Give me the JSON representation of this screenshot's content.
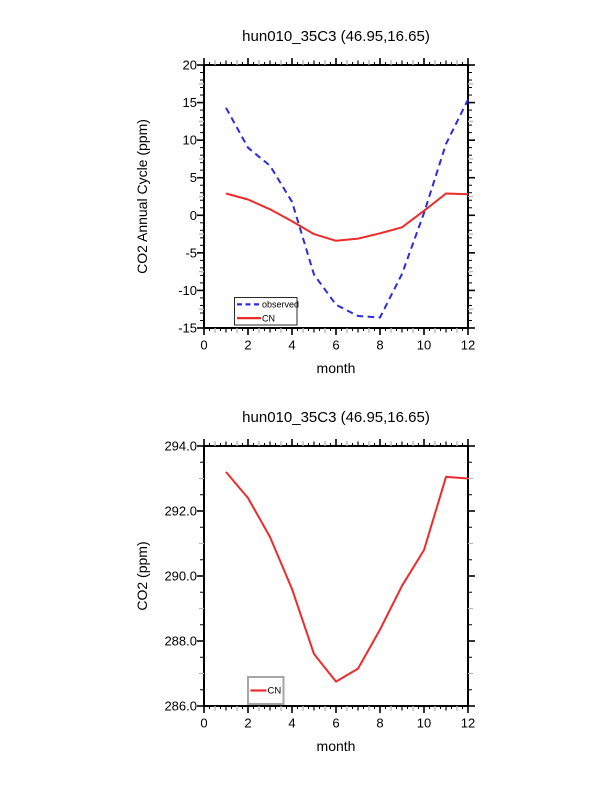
{
  "figure": {
    "background": "#ffffff",
    "frame_color": "#000000",
    "gray_tick_color": "#b4b4b4"
  },
  "chart_data": [
    {
      "type": "line",
      "title": "hun010_35C3 (46.95,16.65)",
      "xlabel": "month",
      "ylabel": "CO2 Annual Cycle (ppm)",
      "xlim": [
        0,
        12
      ],
      "ylim": [
        -15,
        20
      ],
      "xticks": [
        0,
        2,
        4,
        6,
        8,
        10,
        12
      ],
      "xticklabels": [
        "0",
        "2",
        "4",
        "6",
        "8",
        "10",
        "12"
      ],
      "yticks": [
        -15,
        -10,
        -5,
        0,
        5,
        10,
        15,
        20
      ],
      "yticklabels": [
        "-15",
        "-10",
        "-5",
        "0",
        "5",
        "10",
        "15",
        "20"
      ],
      "grid": false,
      "x": [
        1,
        2,
        3,
        4,
        5,
        6,
        7,
        8,
        9,
        10,
        11,
        12
      ],
      "series": [
        {
          "name": "observed",
          "color": "#2b2bdf",
          "dashed": true,
          "values": [
            14.3,
            9.0,
            6.6,
            1.8,
            -7.9,
            -11.9,
            -13.4,
            -13.6,
            -7.8,
            0.3,
            9.5,
            15.4
          ]
        },
        {
          "name": "CN",
          "color": "#ee2b2b",
          "dashed": false,
          "values": [
            2.9,
            2.1,
            0.8,
            -0.8,
            -2.5,
            -3.4,
            -3.1,
            -2.4,
            -1.6,
            0.6,
            2.9,
            2.8
          ]
        }
      ],
      "legend": {
        "entries": [
          "observed",
          "CN"
        ],
        "position": "lower-left",
        "border_color": "#2b2b2b"
      }
    },
    {
      "type": "line",
      "title": "hun010_35C3 (46.95,16.65)",
      "xlabel": "month",
      "ylabel": "CO2 (ppm)",
      "xlim": [
        0,
        12
      ],
      "ylim": [
        286,
        294
      ],
      "xticks": [
        0,
        2,
        4,
        6,
        8,
        10,
        12
      ],
      "xticklabels": [
        "0",
        "2",
        "4",
        "6",
        "8",
        "10",
        "12"
      ],
      "yticks": [
        286,
        288,
        290,
        292,
        294
      ],
      "yticklabels": [
        "286.0",
        "288.0",
        "290.0",
        "292.0",
        "294.0"
      ],
      "grid": false,
      "x": [
        1,
        2,
        3,
        4,
        5,
        6,
        7,
        8,
        9,
        10,
        11,
        12
      ],
      "series": [
        {
          "name": "CN",
          "color": "#ee2b2b",
          "dashed": false,
          "values": [
            293.2,
            292.4,
            291.2,
            289.6,
            287.6,
            286.75,
            287.15,
            288.35,
            289.7,
            290.8,
            293.05,
            293.0
          ]
        }
      ],
      "legend": {
        "entries": [
          "CN"
        ],
        "position": "lower-left",
        "border_color": "#a6a6a6"
      }
    }
  ]
}
